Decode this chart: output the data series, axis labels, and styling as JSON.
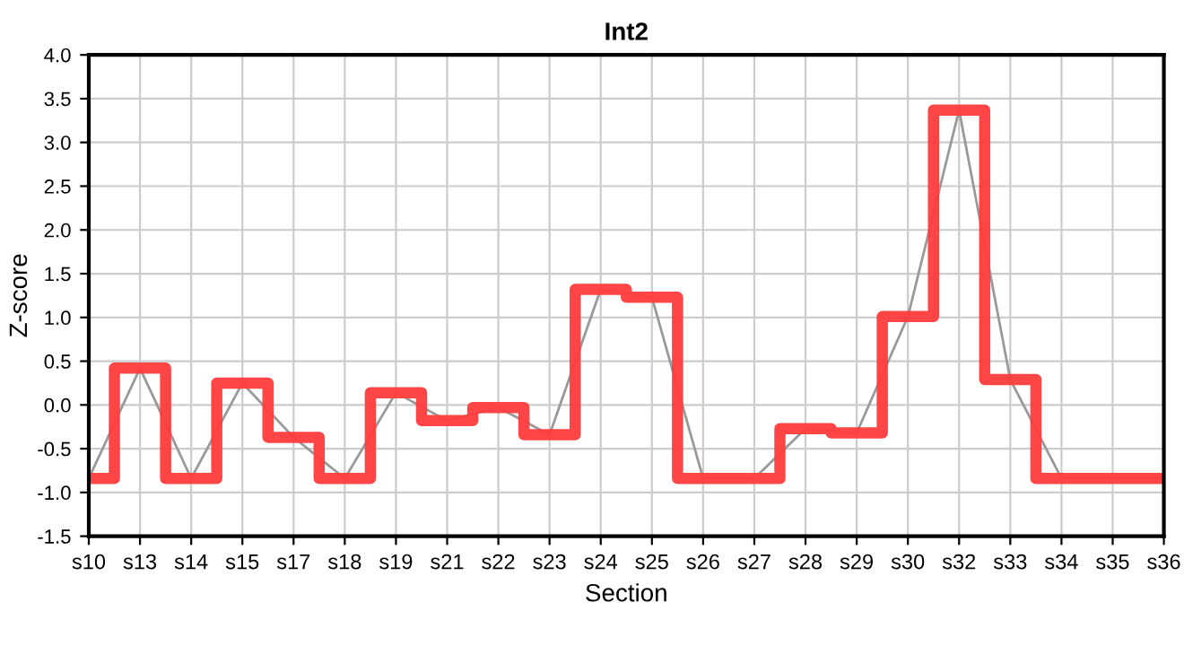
{
  "chart_data": {
    "type": "step",
    "title": "Int2",
    "xlabel": "Section",
    "ylabel": "Z-score",
    "categories": [
      "s10",
      "s13",
      "s14",
      "s15",
      "s17",
      "s18",
      "s19",
      "s21",
      "s22",
      "s23",
      "s24",
      "s25",
      "s26",
      "s27",
      "s28",
      "s29",
      "s30",
      "s32",
      "s33",
      "s34",
      "s35",
      "s36"
    ],
    "series": [
      {
        "type": "line",
        "color": "#999999",
        "values": [
          -0.84,
          0.42,
          -0.84,
          0.25,
          -0.37,
          -0.84,
          0.14,
          -0.18,
          -0.03,
          -0.34,
          1.32,
          1.23,
          -0.84,
          -0.84,
          -0.27,
          -0.32,
          1.01,
          3.37,
          0.29,
          -0.84,
          -0.84,
          -0.84
        ]
      },
      {
        "color": "#ff3b3b",
        "values": [
          -0.84,
          0.42,
          -0.84,
          0.25,
          -0.37,
          -0.84,
          0.14,
          -0.18,
          -0.03,
          -0.34,
          1.32,
          1.23,
          -0.84,
          -0.84,
          -0.27,
          -0.32,
          1.01,
          3.37,
          0.29,
          -0.84,
          -0.84,
          -0.84
        ]
      }
    ],
    "ylim": [
      -1.5,
      4.0
    ],
    "yticks": [
      {
        "value": -1.5,
        "label": "-1.5"
      },
      {
        "value": -1.0,
        "label": "-1.0"
      },
      {
        "value": -0.5,
        "label": "-0.5"
      },
      {
        "value": 0.0,
        "label": "0.0"
      },
      {
        "value": 0.5,
        "label": "0.5"
      },
      {
        "value": 1.0,
        "label": "1.0"
      },
      {
        "value": 1.5,
        "label": "1.5"
      },
      {
        "value": 2.0,
        "label": "2.0"
      },
      {
        "value": 2.5,
        "label": "2.5"
      },
      {
        "value": 3.0,
        "label": "3.0"
      },
      {
        "value": 3.5,
        "label": "3.5"
      },
      {
        "value": 4.0,
        "label": "4.0"
      }
    ],
    "grid": true,
    "legend": false
  }
}
